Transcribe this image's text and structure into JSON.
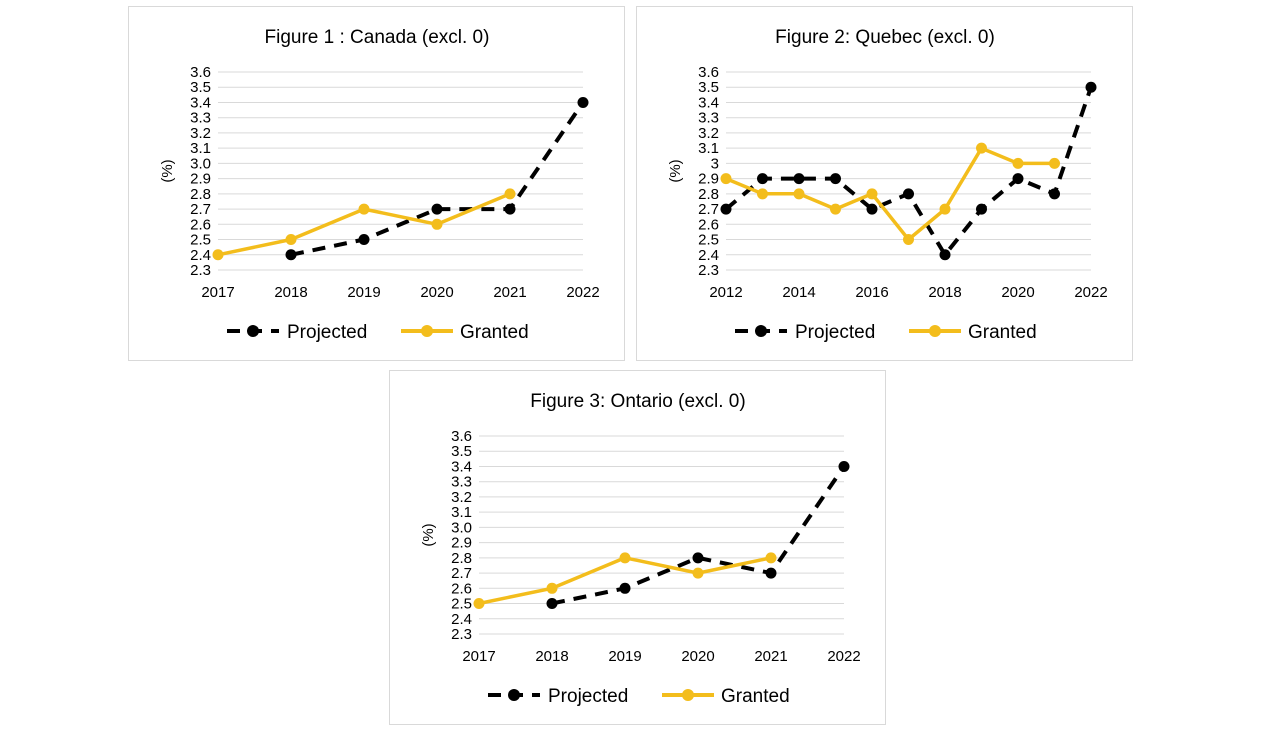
{
  "chart_data": [
    {
      "type": "line",
      "title": "Figure 1 : Canada (excl. 0)",
      "ylabel": "(%)",
      "ylim": [
        2.3,
        3.6
      ],
      "yticks": [
        "2.3",
        "2.4",
        "2.5",
        "2.6",
        "2.7",
        "2.8",
        "2.9",
        "3.0",
        "3.1",
        "3.2",
        "3.3",
        "3.4",
        "3.5",
        "3.6"
      ],
      "x": [
        "2017",
        "2018",
        "2019",
        "2020",
        "2021",
        "2022"
      ],
      "grid": "horizontal",
      "legend_position": "bottom",
      "series": [
        {
          "name": "Projected",
          "color": "#000000",
          "dashed": true,
          "values": [
            null,
            2.4,
            2.5,
            2.7,
            2.7,
            3.4
          ]
        },
        {
          "name": "Granted",
          "color": "#f3bd1c",
          "dashed": false,
          "values": [
            2.4,
            2.5,
            2.7,
            2.6,
            2.8,
            null
          ]
        }
      ]
    },
    {
      "type": "line",
      "title": "Figure 2: Quebec (excl. 0)",
      "ylabel": "(%)",
      "ylim": [
        2.3,
        3.6
      ],
      "yticks": [
        "2.3",
        "2.4",
        "2.5",
        "2.6",
        "2.7",
        "2.8",
        "2.9",
        "3",
        "3.1",
        "3.2",
        "3.3",
        "3.4",
        "3.5",
        "3.6"
      ],
      "x": [
        "2012",
        "2013",
        "2014",
        "2015",
        "2016",
        "2017",
        "2018",
        "2019",
        "2020",
        "2021",
        "2022"
      ],
      "xtick_labels": [
        "2012",
        "",
        "2014",
        "",
        "2016",
        "",
        "2018",
        "",
        "2020",
        "",
        "2022"
      ],
      "grid": "horizontal",
      "legend_position": "bottom",
      "series": [
        {
          "name": "Projected",
          "color": "#000000",
          "dashed": true,
          "values": [
            2.7,
            2.9,
            2.9,
            2.9,
            2.7,
            2.8,
            2.4,
            2.7,
            2.9,
            2.8,
            3.5
          ]
        },
        {
          "name": "Granted",
          "color": "#f3bd1c",
          "dashed": false,
          "values": [
            2.9,
            2.8,
            2.8,
            2.7,
            2.8,
            2.5,
            2.7,
            3.1,
            3.0,
            3.0,
            null
          ]
        }
      ]
    },
    {
      "type": "line",
      "title": "Figure 3: Ontario (excl. 0)",
      "ylabel": "(%)",
      "ylim": [
        2.3,
        3.6
      ],
      "yticks": [
        "2.3",
        "2.4",
        "2.5",
        "2.6",
        "2.7",
        "2.8",
        "2.9",
        "3.0",
        "3.1",
        "3.2",
        "3.3",
        "3.4",
        "3.5",
        "3.6"
      ],
      "x": [
        "2017",
        "2018",
        "2019",
        "2020",
        "2021",
        "2022"
      ],
      "grid": "horizontal",
      "legend_position": "bottom",
      "series": [
        {
          "name": "Projected",
          "color": "#000000",
          "dashed": true,
          "values": [
            null,
            2.5,
            2.6,
            2.8,
            2.7,
            3.4
          ]
        },
        {
          "name": "Granted",
          "color": "#f3bd1c",
          "dashed": false,
          "values": [
            2.5,
            2.6,
            2.8,
            2.7,
            2.8,
            null
          ]
        }
      ]
    }
  ]
}
